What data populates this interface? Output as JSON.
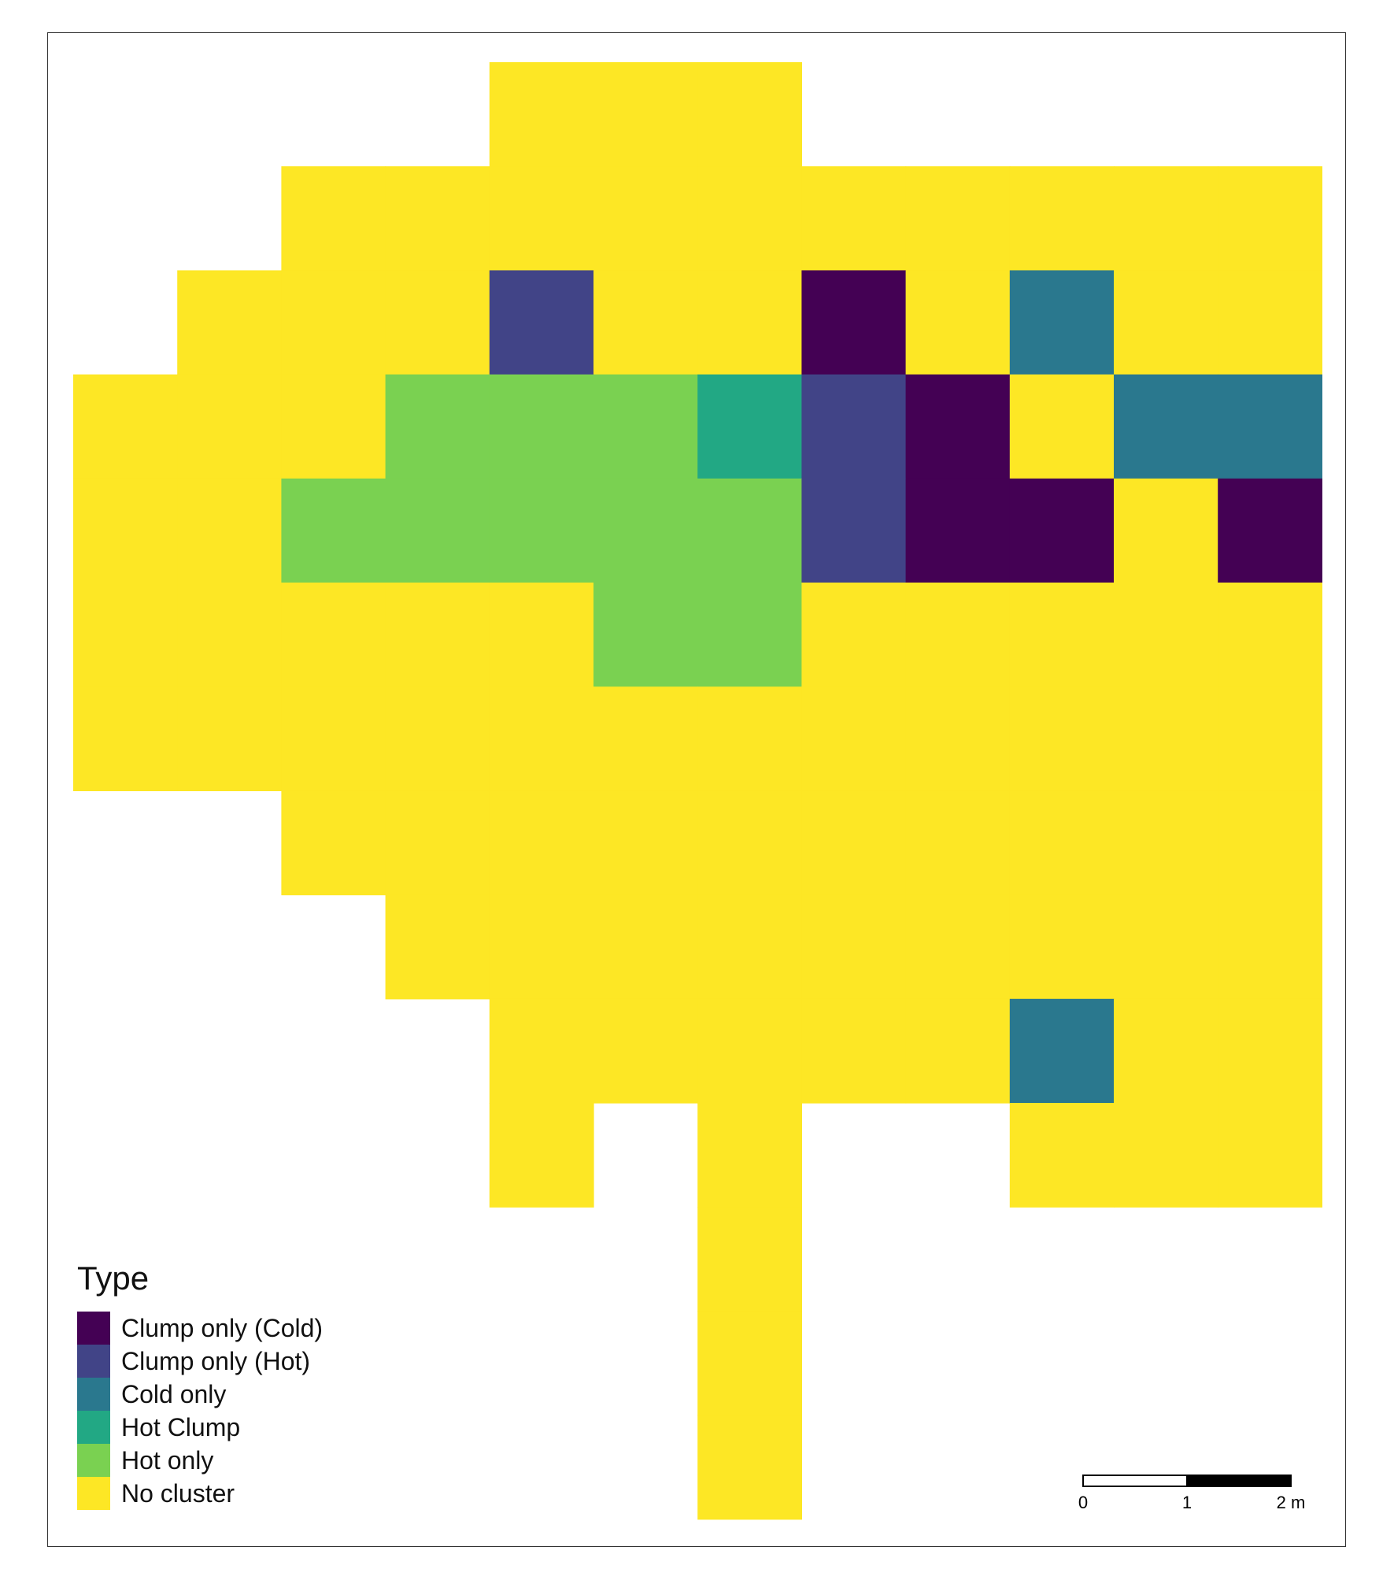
{
  "legend": {
    "title": "Type",
    "items": [
      {
        "label": "Clump only (Cold)",
        "color": "#440154",
        "key": "CC"
      },
      {
        "label": "Clump only (Hot)",
        "color": "#414487",
        "key": "CH"
      },
      {
        "label": "Cold only",
        "color": "#2A788E",
        "key": "CO"
      },
      {
        "label": "Hot Clump",
        "color": "#22A884",
        "key": "HC"
      },
      {
        "label": "Hot only",
        "color": "#7AD151",
        "key": "HO"
      },
      {
        "label": "No cluster",
        "color": "#FDE725",
        "key": "NC"
      }
    ]
  },
  "grid": {
    "columns": 12,
    "rows": 14,
    "cells": [
      "....NNN.....",
      "..NNNNNNNNNN",
      ".NNNCNNXNONN",
      "NNNHHHVCXNOO",
      "NNHHHHHCXXNX",
      "NNNNNHHNNNNN",
      "NNNNNNNNNNNN",
      "..NNNNNNNNNN",
      "...NNNNNNNNN",
      "....NNNNNONN",
      "....N.N..NNN",
      "......N.....",
      "......N.....",
      "......N....."
    ],
    "codes": {
      "X": "Clump only (Cold)",
      "C": "Clump only (Hot)",
      "O": "Cold only",
      "V": "Hot Clump",
      "H": "Hot only",
      "N": "No cluster"
    }
  },
  "scale_bar": {
    "ticks": [
      "0",
      "1",
      "2 m"
    ]
  }
}
